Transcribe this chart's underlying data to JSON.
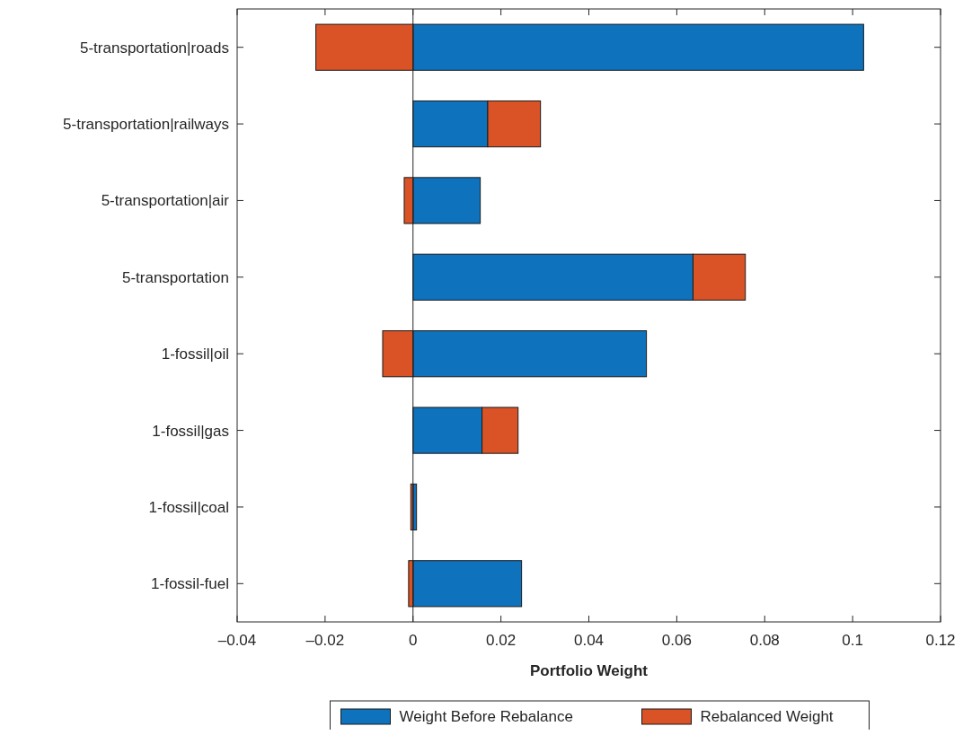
{
  "chart_data": {
    "type": "bar",
    "orientation": "horizontal",
    "stacked": true,
    "categories": [
      "5-transportation|roads",
      "5-transportation|railways",
      "5-transportation|air",
      "5-transportation",
      "1-fossil|oil",
      "1-fossil|gas",
      "1-fossil|coal",
      "1-fossil-fuel"
    ],
    "series": [
      {
        "name": "Weight Before Rebalance",
        "color": "#0e72bd",
        "values": [
          0.1025,
          0.017,
          0.0153,
          0.0637,
          0.0531,
          0.0157,
          0.0008,
          0.0247
        ]
      },
      {
        "name": "Rebalanced Weight",
        "color": "#d95326",
        "values": [
          -0.0221,
          0.012,
          -0.002,
          0.0119,
          -0.0069,
          0.0082,
          -0.0005,
          -0.001
        ]
      }
    ],
    "xlim": [
      -0.04,
      0.12
    ],
    "xticks": [
      {
        "value": -0.04,
        "label": "–0.04"
      },
      {
        "value": -0.02,
        "label": "–0.02"
      },
      0,
      0.02,
      0.04,
      0.06,
      0.08,
      0.1,
      0.12
    ],
    "xlabel": "Portfolio Weight",
    "ref_lines": [
      {
        "axis": "x",
        "value": 0,
        "color": "#262626"
      }
    ],
    "grid": false,
    "legend": "bottom"
  }
}
